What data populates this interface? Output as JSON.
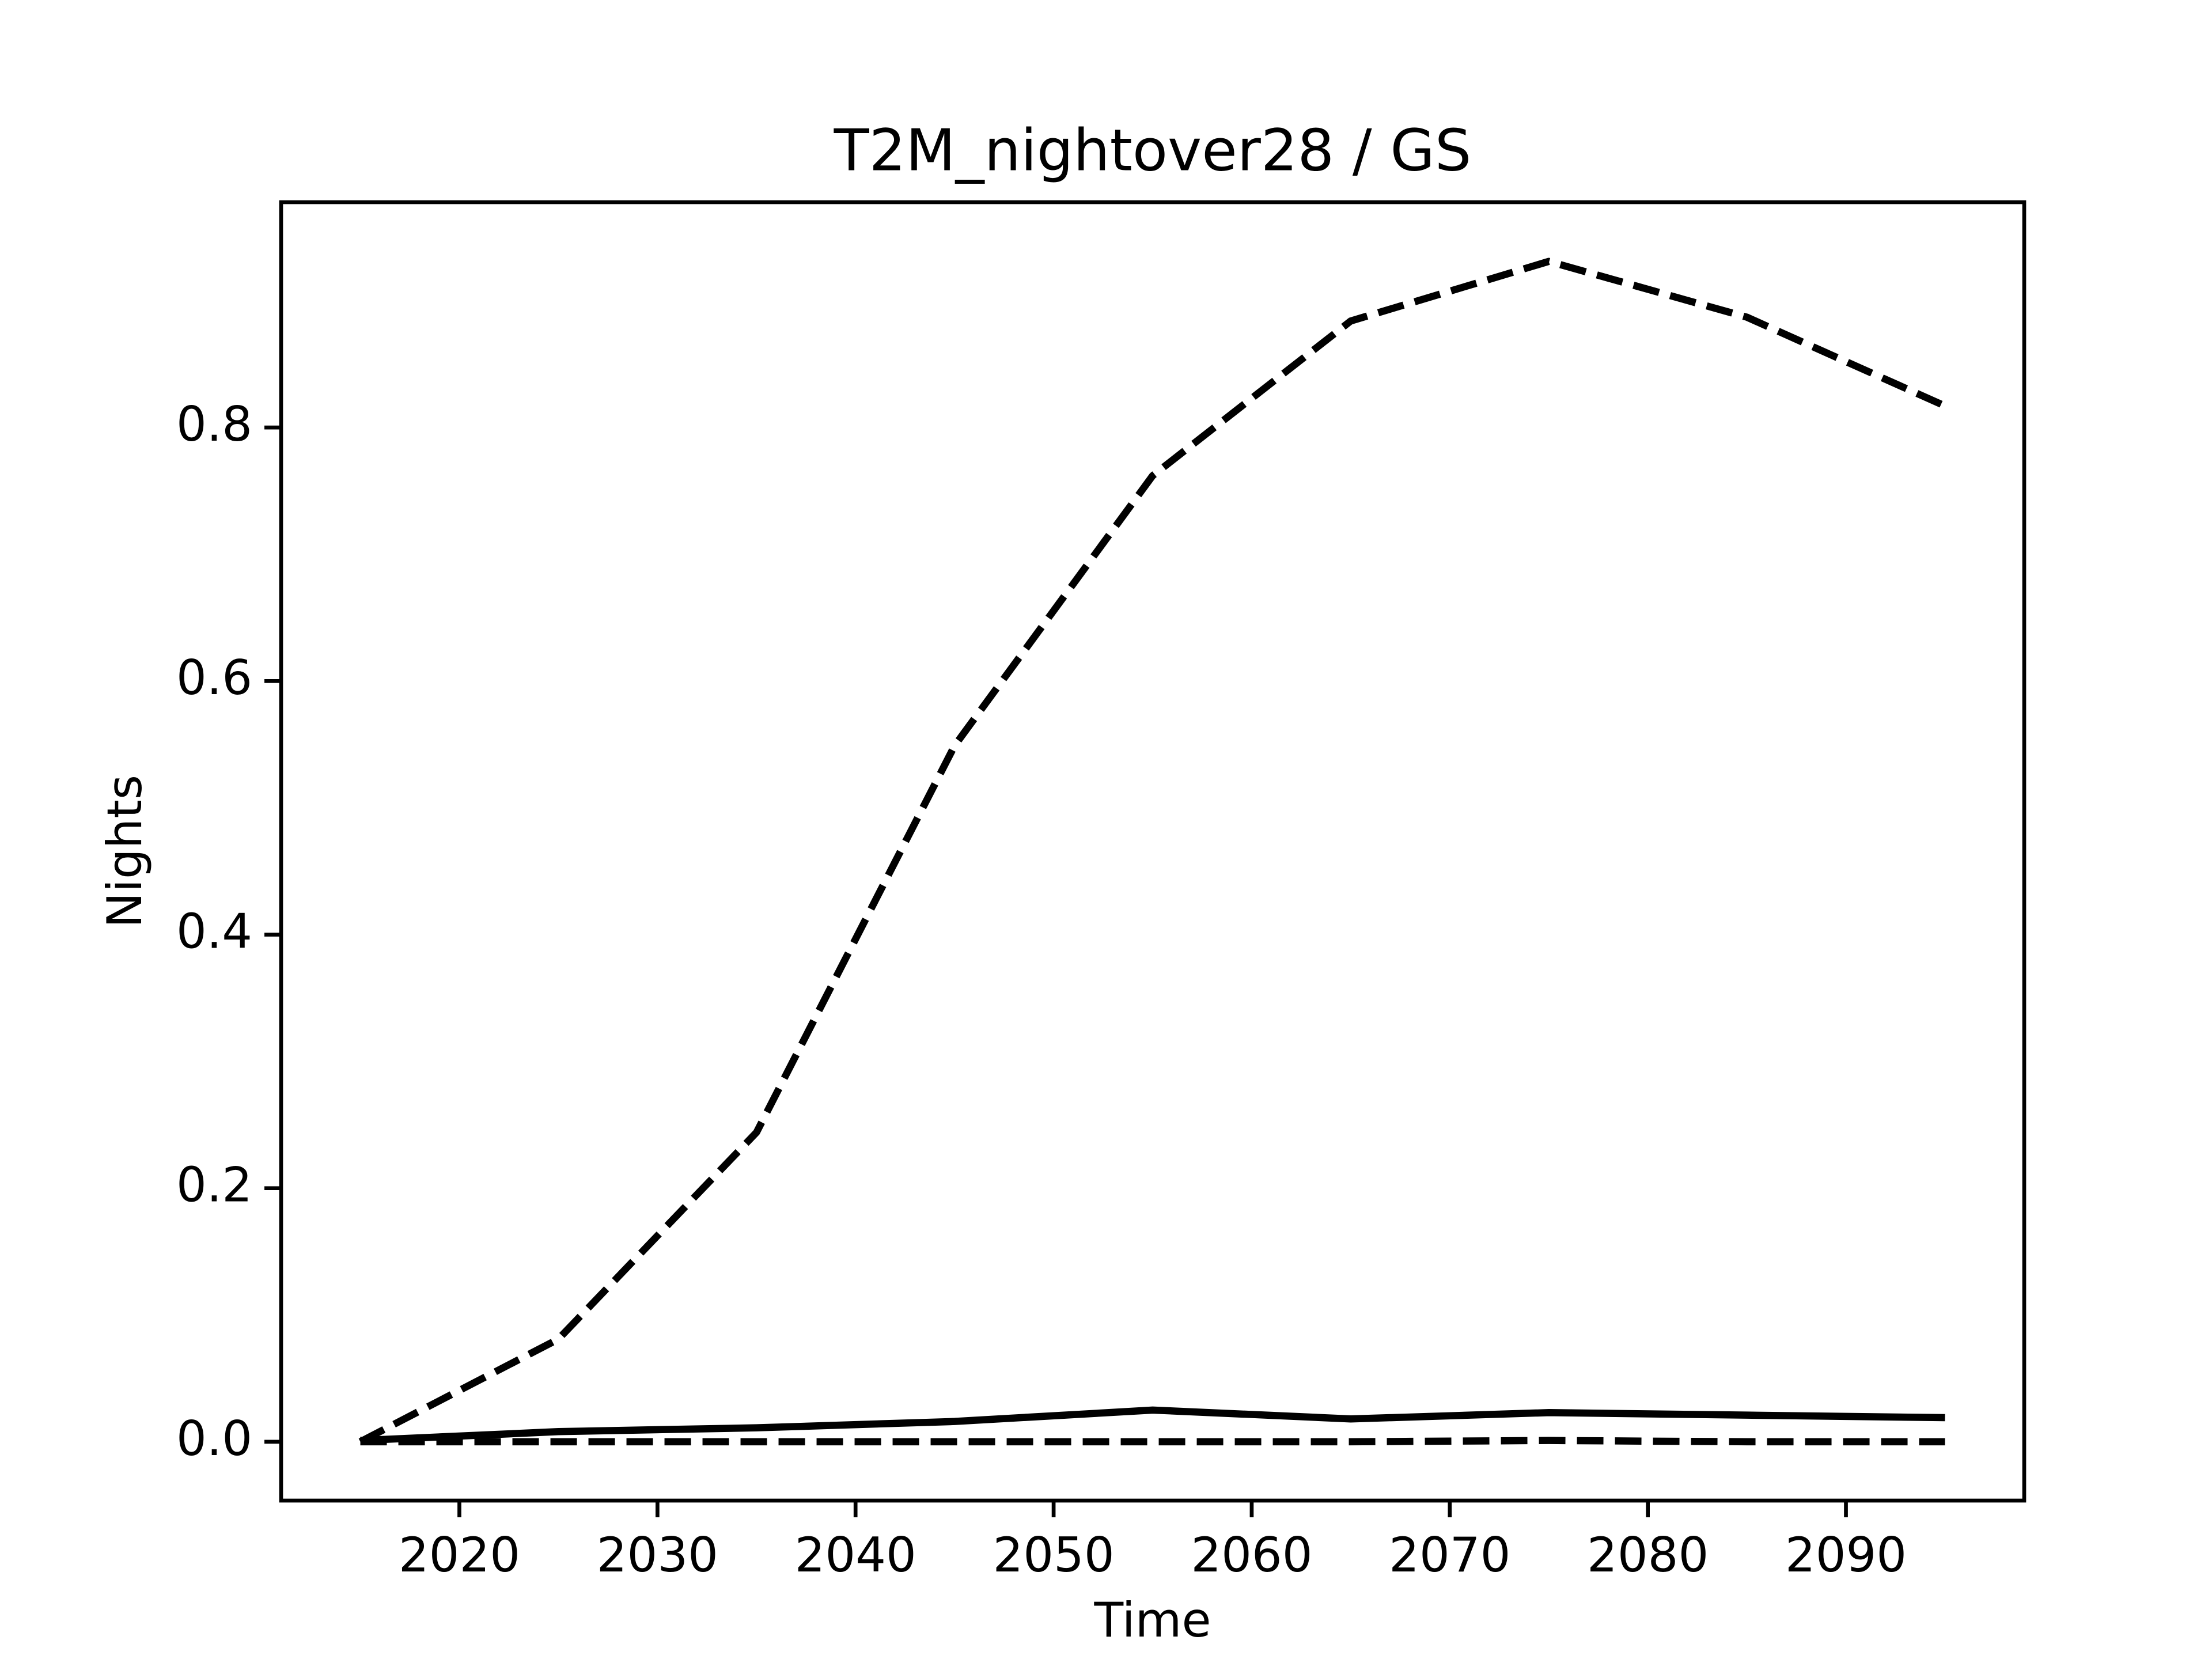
{
  "chart_data": {
    "type": "line",
    "title": "T2M_nightover28 / GS",
    "xlabel": "Time",
    "ylabel": "Nights",
    "x": [
      2015,
      2025,
      2035,
      2045,
      2055,
      2065,
      2075,
      2085,
      2095
    ],
    "series": [
      {
        "color": "#000000",
        "style": "dashed",
        "values": [
          0.0,
          0.081,
          0.244,
          0.549,
          0.762,
          0.884,
          0.931,
          0.887,
          0.817
        ]
      },
      {
        "color": "#000000",
        "style": "solid",
        "values": [
          0.001,
          0.008,
          0.011,
          0.016,
          0.025,
          0.018,
          0.023,
          0.021,
          0.019
        ]
      },
      {
        "color": "#000000",
        "style": "dashed",
        "values": [
          0.0,
          0.0,
          0.0,
          0.0,
          0.0,
          0.0,
          0.001,
          0.0,
          0.0
        ]
      }
    ],
    "xlim": [
      2011,
      2099
    ],
    "xticks": [
      2020,
      2030,
      2040,
      2050,
      2060,
      2070,
      2080,
      2090
    ],
    "ylim": [
      -0.0464,
      0.9777
    ],
    "yticks": [
      {
        "value": 0,
        "label": "0.0"
      },
      0.2,
      0.4,
      0.6,
      0.8
    ],
    "grid": false
  }
}
